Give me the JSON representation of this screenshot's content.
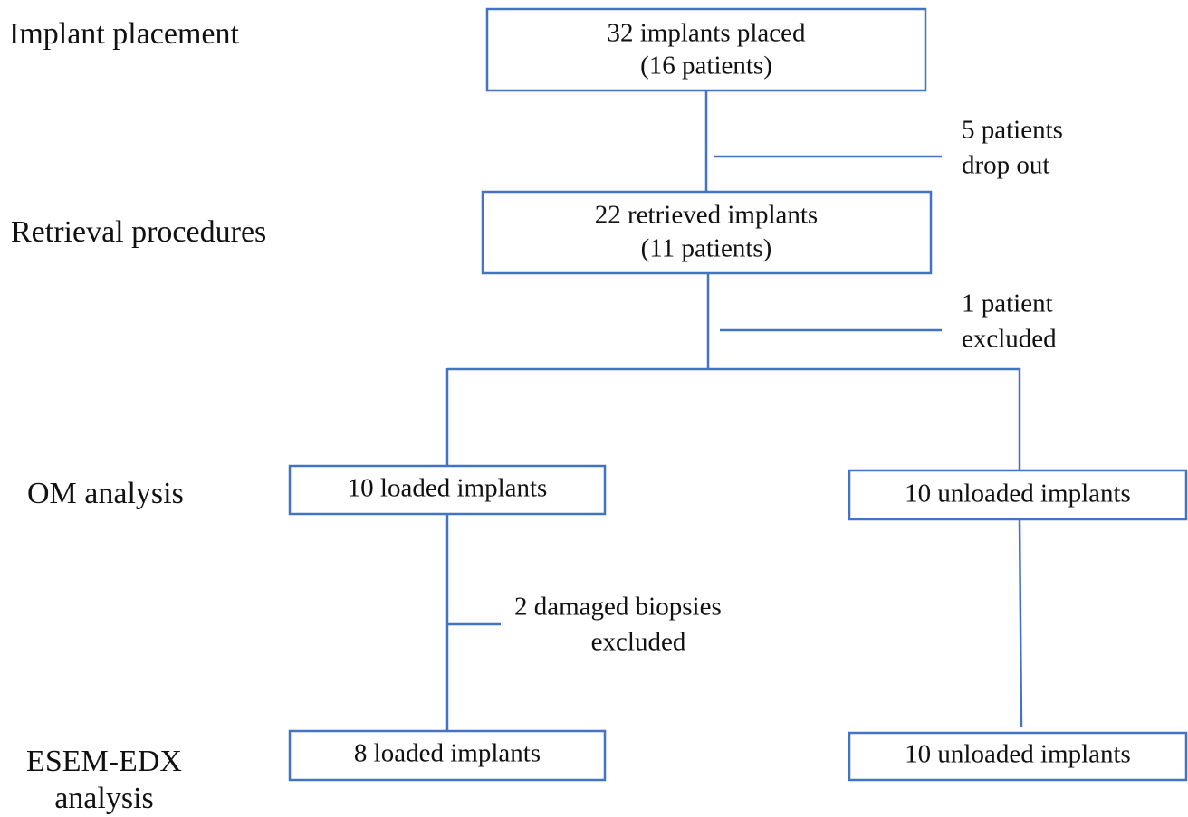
{
  "stages": [
    {
      "lines": [
        "Implant placement"
      ]
    },
    {
      "lines": [
        "Retrieval procedures"
      ]
    },
    {
      "lines": [
        "OM analysis"
      ]
    },
    {
      "lines": [
        "ESEM-EDX",
        "analysis"
      ]
    }
  ],
  "nodes": [
    {
      "lines": [
        "32 implants placed",
        "(16 patients)"
      ]
    },
    {
      "lines": [
        "22 retrieved implants",
        "(11 patients)"
      ]
    },
    {
      "lines": [
        "10 loaded implants"
      ]
    },
    {
      "lines": [
        "10 unloaded implants"
      ]
    },
    {
      "lines": [
        "8 loaded implants"
      ]
    },
    {
      "lines": [
        "10 unloaded implants"
      ]
    }
  ],
  "exclusions": [
    {
      "lines": [
        "5 patients",
        "drop out"
      ]
    },
    {
      "lines": [
        "1 patient",
        "excluded"
      ]
    },
    {
      "lines": [
        "2 damaged biopsies",
        "excluded"
      ]
    }
  ]
}
